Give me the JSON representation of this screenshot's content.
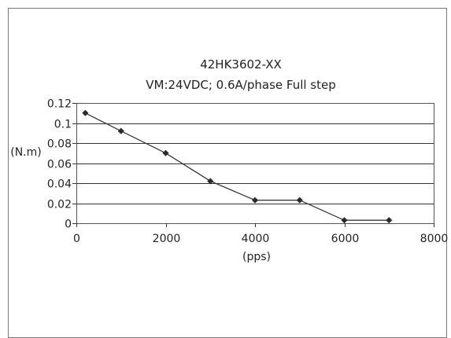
{
  "chart_data": {
    "type": "line",
    "title": "42HK3602-XX",
    "subtitle": "VM:24VDC; 0.6A/phase Full step",
    "xlabel": "(pps)",
    "ylabel": "(N.m)",
    "xlim": [
      0,
      8000
    ],
    "ylim": [
      0,
      0.12
    ],
    "x_ticks": [
      "0",
      "2000",
      "4000",
      "6000",
      "8000"
    ],
    "y_ticks": [
      "0",
      "0.02",
      "0.04",
      "0.06",
      "0.08",
      "0.1",
      "0.12"
    ],
    "grid": "horizontal",
    "series": [
      {
        "x": [
          200,
          1000,
          2000,
          3000,
          4000,
          5000,
          6000,
          7000
        ],
        "y": [
          0.11,
          0.092,
          0.07,
          0.042,
          0.023,
          0.023,
          0.003,
          0.003
        ],
        "marker": "diamond"
      }
    ],
    "colors": {
      "line": "#3a3a3a",
      "marker": "#2a2a2a",
      "grid": "#333333",
      "frame": "#555555"
    }
  }
}
